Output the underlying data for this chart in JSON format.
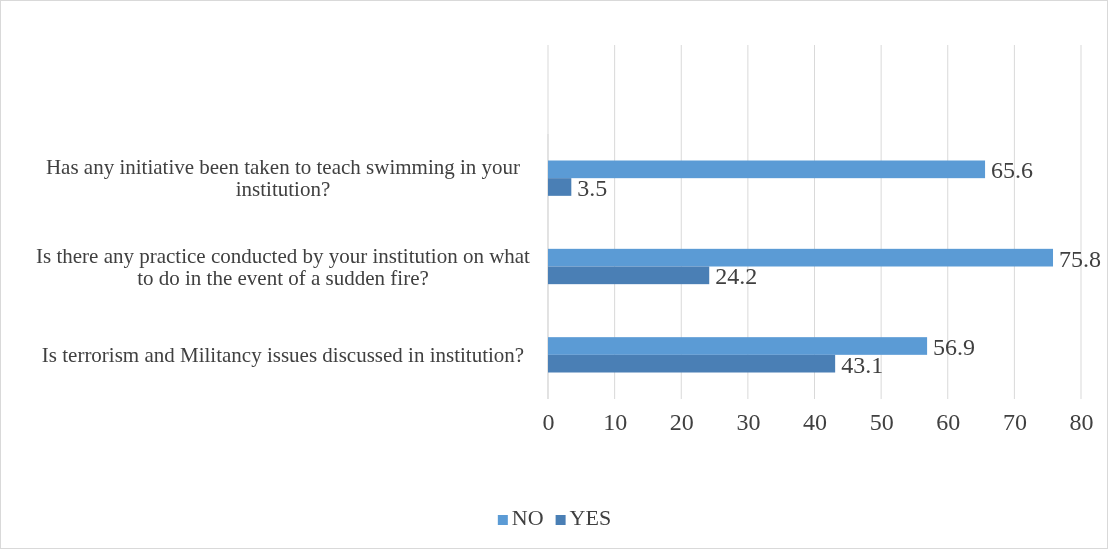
{
  "chart_data": {
    "type": "bar",
    "orientation": "horizontal",
    "categories": [
      "Has any initiative been taken to teach swimming in your institution?",
      "Is there any practice conducted by your institution on what to do in the event of a sudden fire?",
      "Is terrorism and Militancy issues discussed in institution?"
    ],
    "series": [
      {
        "name": "NO",
        "color": "#5b9bd5",
        "values": [
          65.6,
          75.8,
          56.9
        ]
      },
      {
        "name": "YES",
        "color": "#4a7fb5",
        "values": [
          3.5,
          24.2,
          43.1
        ]
      }
    ],
    "xlim": [
      0,
      80
    ],
    "xticks": [
      0,
      10,
      20,
      30,
      40,
      50,
      60,
      70,
      80
    ],
    "grid": "x",
    "legend": "bottom",
    "data_labels": true
  }
}
